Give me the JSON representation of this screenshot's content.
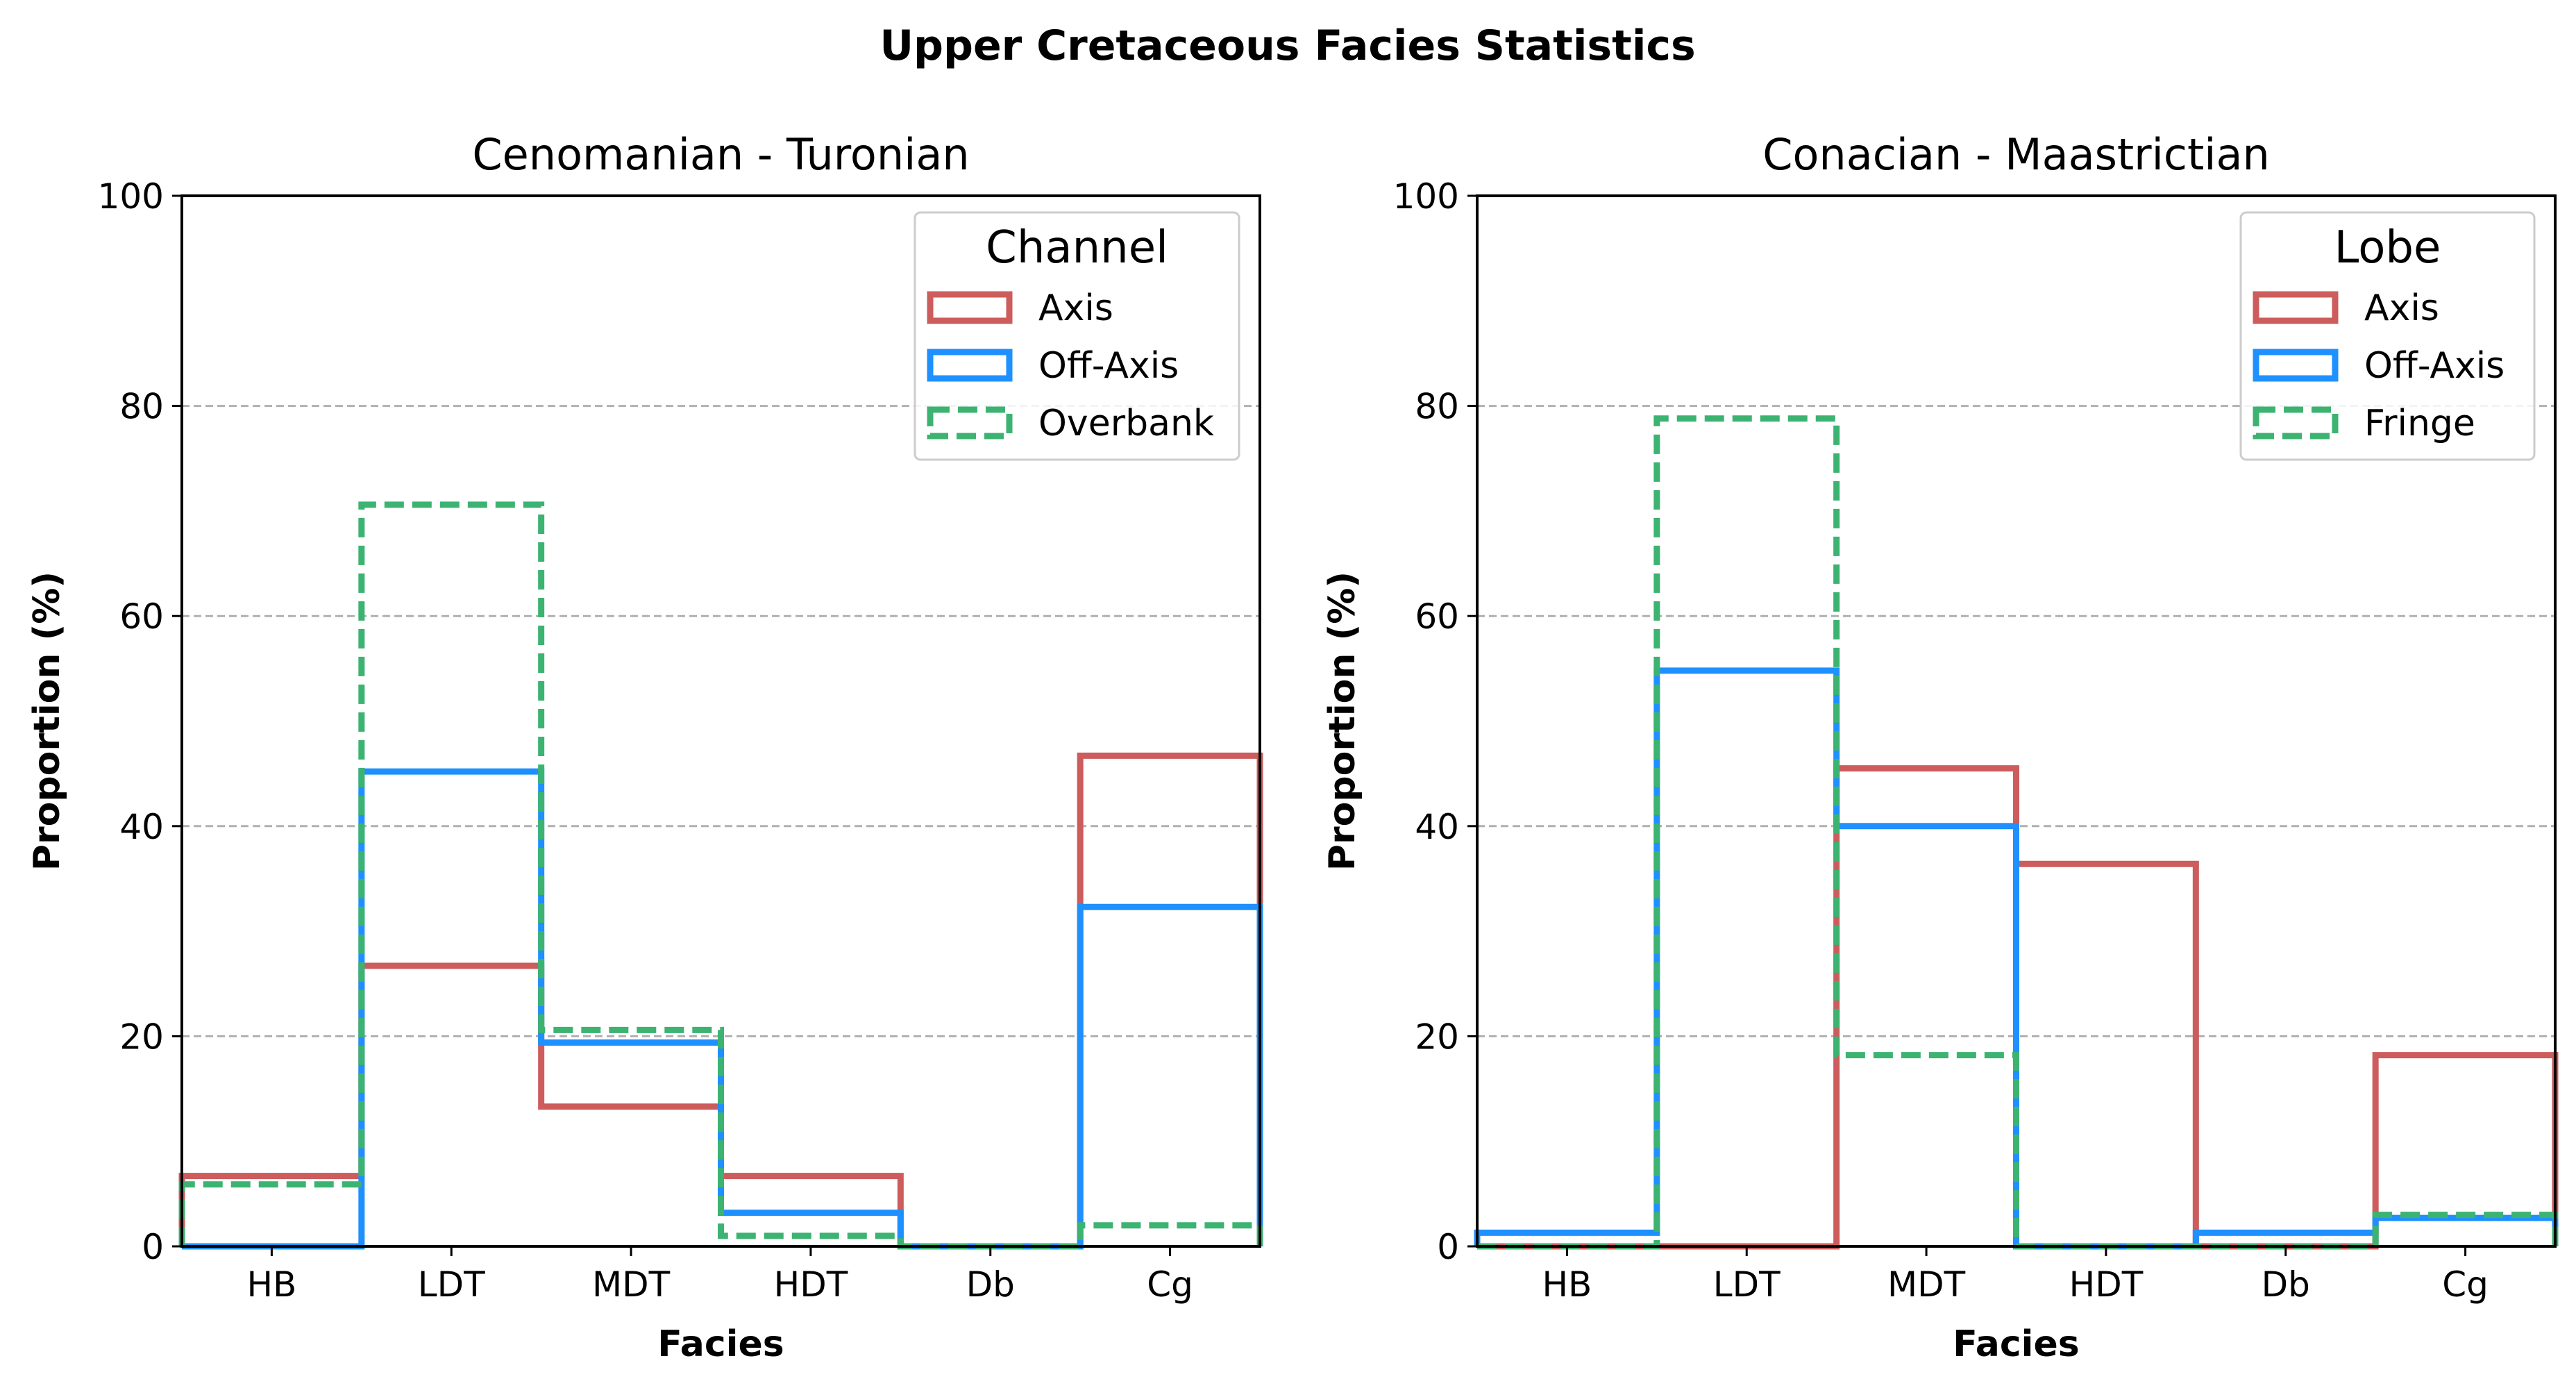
{
  "title": "Upper Cretaceous Facies Statistics",
  "colors": {
    "axis": "#cd5c5c",
    "offaxis": "#1e90ff",
    "green": "#3cb371",
    "grid": "#b0b0b0"
  },
  "chart_data": [
    {
      "type": "bar",
      "style": "step-histogram",
      "title": "Cenomanian - Turonian",
      "xlabel": "Facies",
      "ylabel": "Proportion (%)",
      "ylim": [
        0,
        100
      ],
      "yticks": [
        0,
        20,
        40,
        60,
        80,
        100
      ],
      "grid": "y-dashed",
      "categories": [
        "HB",
        "LDT",
        "MDT",
        "HDT",
        "Db",
        "Cg"
      ],
      "legend": {
        "title": "Channel",
        "placement": "upper right"
      },
      "series": [
        {
          "name": "Axis",
          "color": "#cd5c5c",
          "dashed": false,
          "values": [
            6.7,
            26.7,
            13.3,
            6.7,
            0,
            46.7
          ]
        },
        {
          "name": "Off-Axis",
          "color": "#1e90ff",
          "dashed": false,
          "values": [
            0,
            45.2,
            19.4,
            3.2,
            0,
            32.3
          ]
        },
        {
          "name": "Overbank",
          "color": "#3cb371",
          "dashed": true,
          "values": [
            5.9,
            70.6,
            20.6,
            1.0,
            0,
            2.0
          ]
        }
      ]
    },
    {
      "type": "bar",
      "style": "step-histogram",
      "title": "Conacian - Maastrictian",
      "xlabel": "Facies",
      "ylabel": "Proportion (%)",
      "ylim": [
        0,
        100
      ],
      "yticks": [
        0,
        20,
        40,
        60,
        80,
        100
      ],
      "grid": "y-dashed",
      "categories": [
        "HB",
        "LDT",
        "MDT",
        "HDT",
        "Db",
        "Cg"
      ],
      "legend": {
        "title": "Lobe",
        "placement": "upper right"
      },
      "series": [
        {
          "name": "Axis",
          "color": "#cd5c5c",
          "dashed": false,
          "values": [
            0,
            0,
            45.5,
            36.4,
            0,
            18.2
          ]
        },
        {
          "name": "Off-Axis",
          "color": "#1e90ff",
          "dashed": false,
          "values": [
            1.3,
            54.8,
            40.0,
            0,
            1.3,
            2.7
          ]
        },
        {
          "name": "Fringe",
          "color": "#3cb371",
          "dashed": true,
          "values": [
            0,
            78.8,
            18.2,
            0,
            0,
            3.0
          ]
        }
      ]
    }
  ]
}
